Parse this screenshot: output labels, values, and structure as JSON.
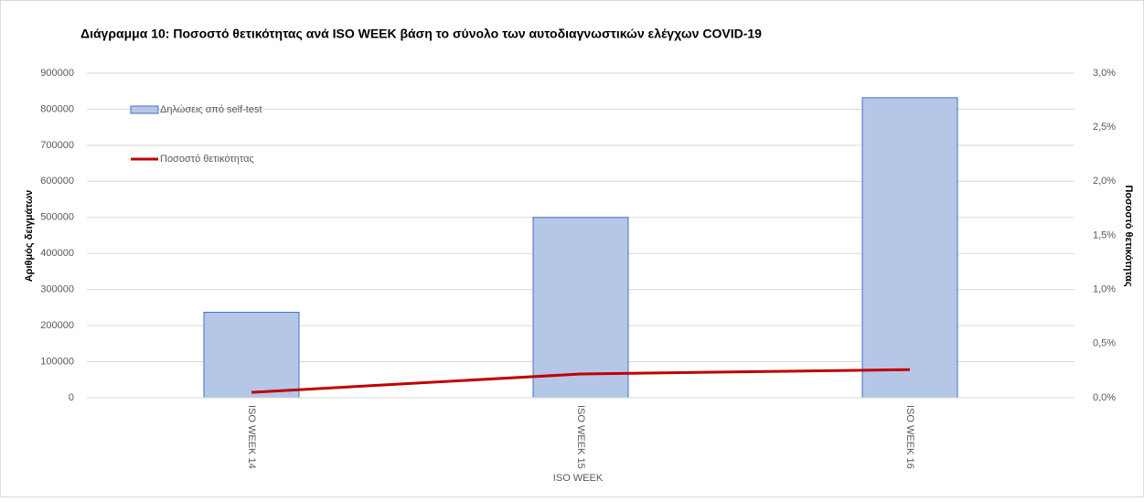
{
  "chart_data": {
    "type": "bar",
    "title": "Διάγραμμα 10: Ποσοστό θετικότητας ανά ISO WEEK  βάση το σύνολο των αυτοδιαγνωστικών ελέγχων COVID-19",
    "x_label": "ISO WEEK",
    "y_label": "Αριθμός δειγμάτων",
    "y2_label": "Ποσοστό θετικότητας",
    "categories": [
      "ISO WEEK 14",
      "ISO WEEK 15",
      "ISO WEEK 16"
    ],
    "series": [
      {
        "name": "Δηλώσεις από self-test",
        "type": "bar",
        "color": "#b4c7e7",
        "edge_color": "#4472c4",
        "values": [
          237000,
          500000,
          832000
        ]
      },
      {
        "name": "Ποσοστό θετικότητας",
        "type": "line",
        "axis": "y2",
        "color": "#c00000",
        "values": [
          0.05,
          0.22,
          0.26
        ]
      }
    ],
    "ylim": [
      0,
      900000
    ],
    "yticks": [
      0,
      100000,
      200000,
      300000,
      400000,
      500000,
      600000,
      700000,
      800000,
      900000
    ],
    "y2lim": [
      0,
      3.0
    ],
    "y2ticks": [
      {
        "value": 0,
        "label": "0,0%"
      },
      {
        "value": 0.5,
        "label": "0,5%"
      },
      {
        "value": 1.0,
        "label": "1,0%"
      },
      {
        "value": 1.5,
        "label": "1,5%"
      },
      {
        "value": 2.0,
        "label": "2,0%"
      },
      {
        "value": 2.5,
        "label": "2,5%"
      },
      {
        "value": 3.0,
        "label": "3,0%"
      }
    ],
    "grid": true,
    "legend": "upper left"
  }
}
